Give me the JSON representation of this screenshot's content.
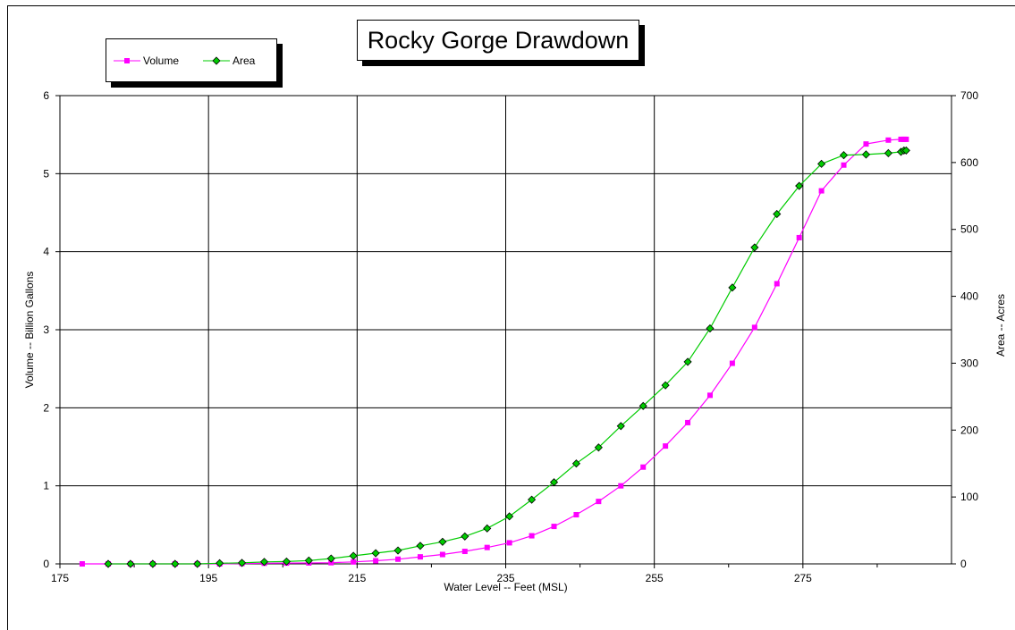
{
  "chart_data": {
    "type": "line",
    "title": "Rocky Gorge Drawdown",
    "xlabel": "Water Level -- Feet (MSL)",
    "ylabel": "Volume -- Billion Gallons",
    "y2label": "Area -- Acres",
    "xlim": [
      175,
      295
    ],
    "ylim": [
      0,
      6
    ],
    "y2lim": [
      0,
      700
    ],
    "xticks": [
      "175",
      "195",
      "215",
      "235",
      "255",
      "275"
    ],
    "yticks": [
      "0",
      "1",
      "2",
      "3",
      "4",
      "5",
      "6"
    ],
    "y2ticks": [
      "0",
      "100",
      "200",
      "300",
      "400",
      "500",
      "600",
      "700"
    ],
    "grid": true,
    "legend_position": "top-left",
    "series": [
      {
        "name": "Volume",
        "axis": "left",
        "color": "#ff00ff",
        "marker": "square",
        "x": [
          178,
          181.5,
          184.5,
          187.5,
          190.5,
          193.5,
          196.5,
          199.5,
          202.5,
          205.5,
          208.5,
          211.5,
          214.5,
          217.5,
          220.5,
          223.5,
          226.5,
          229.5,
          232.5,
          235.5,
          238.5,
          241.5,
          244.5,
          247.5,
          250.5,
          253.5,
          256.5,
          259.5,
          262.5,
          265.5,
          268.5,
          271.5,
          274.5,
          277.5,
          280.5,
          283.5,
          286.5,
          288.2,
          288.6,
          288.9
        ],
        "values": [
          0,
          0,
          0,
          0,
          0,
          0,
          0,
          0.005,
          0.008,
          0.01,
          0.012,
          0.015,
          0.025,
          0.04,
          0.06,
          0.09,
          0.12,
          0.16,
          0.21,
          0.27,
          0.36,
          0.48,
          0.63,
          0.8,
          1.0,
          1.24,
          1.51,
          1.81,
          2.16,
          2.57,
          3.03,
          3.59,
          4.18,
          4.78,
          5.11,
          5.38,
          5.43,
          5.44,
          5.44,
          5.44
        ]
      },
      {
        "name": "Area",
        "axis": "right",
        "color": "#00cc00",
        "marker": "diamond",
        "x": [
          181.5,
          184.5,
          187.5,
          190.5,
          193.5,
          196.5,
          199.5,
          202.5,
          205.5,
          208.5,
          211.5,
          214.5,
          217.5,
          220.5,
          223.5,
          226.5,
          229.5,
          232.5,
          235.5,
          238.5,
          241.5,
          244.5,
          247.5,
          250.5,
          253.5,
          256.5,
          259.5,
          262.5,
          265.5,
          268.5,
          271.5,
          274.5,
          277.5,
          280.5,
          283.5,
          286.5,
          288.2,
          288.6,
          288.9
        ],
        "values": [
          0,
          0,
          0,
          0,
          0,
          1,
          1.5,
          3,
          3.5,
          5,
          8,
          12,
          16,
          20,
          27,
          33,
          41,
          53,
          71,
          96,
          122,
          150,
          174,
          206,
          236,
          267,
          302,
          352,
          413,
          473,
          523,
          565,
          598,
          611,
          612,
          614,
          616,
          618,
          618
        ]
      }
    ]
  }
}
